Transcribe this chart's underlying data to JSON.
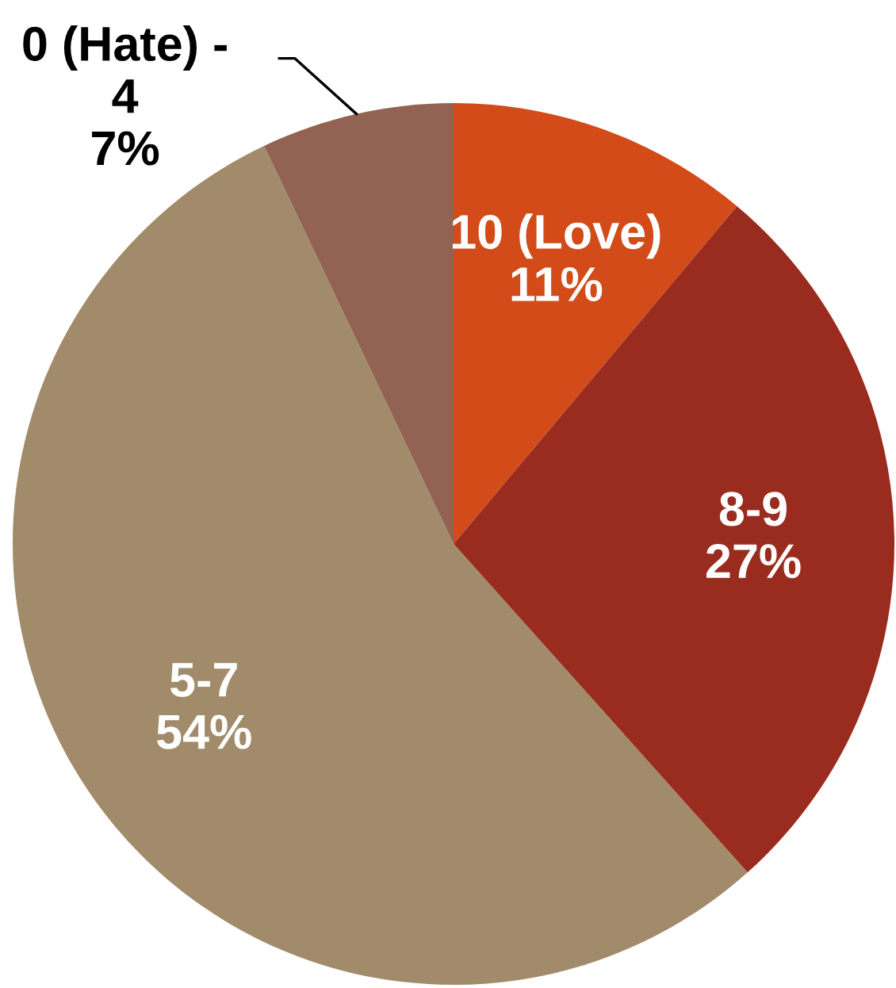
{
  "chart_data": {
    "type": "pie",
    "categories": [
      "10 (Love)",
      "8-9",
      "5-7",
      "0 (Hate) -\n4"
    ],
    "values": [
      11,
      27,
      54,
      7
    ],
    "colors": [
      "#d24b19",
      "#9a2c1f",
      "#a18b6a",
      "#926353"
    ],
    "value_labels": [
      "11%",
      "27%",
      "54%",
      "7%"
    ]
  }
}
